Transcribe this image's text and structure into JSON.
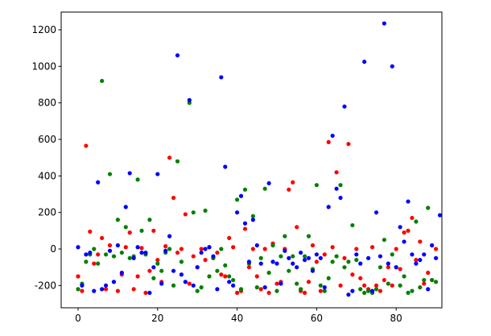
{
  "chart_data": {
    "type": "scatter",
    "xlim": [
      -4.25,
      91.5
    ],
    "ylim": [
      -322,
      1297
    ],
    "xticks": [
      0,
      20,
      40,
      60,
      80
    ],
    "yticks": [
      -200,
      0,
      200,
      400,
      600,
      800,
      1000,
      1200
    ],
    "series": [
      {
        "color": "#ff0000",
        "x": [
          0,
          1,
          2,
          3,
          4,
          5,
          6,
          7,
          8,
          9,
          10,
          11,
          12,
          13,
          14,
          15,
          16,
          17,
          18,
          19,
          20,
          21,
          22,
          23,
          24,
          25,
          26,
          27,
          28,
          29,
          30,
          31,
          32,
          33,
          34,
          35,
          36,
          37,
          38,
          39,
          40,
          41,
          42,
          43,
          44,
          45,
          46,
          47,
          48,
          49,
          50,
          51,
          52,
          53,
          54,
          55,
          56,
          57,
          58,
          59,
          60,
          61,
          62,
          63,
          64,
          65,
          66,
          67,
          68,
          69,
          70,
          71,
          72,
          73,
          74,
          75,
          76,
          77,
          78,
          79,
          80,
          81,
          82,
          83,
          84,
          85,
          86,
          87,
          88,
          89,
          90
        ],
        "values": [
          -150,
          -230,
          565,
          95,
          -80,
          -30,
          60,
          -220,
          20,
          -180,
          -230,
          -140,
          10,
          90,
          -220,
          -150,
          5,
          -240,
          -120,
          100,
          -60,
          -180,
          15,
          500,
          280,
          -20,
          0,
          190,
          -190,
          -40,
          -100,
          0,
          -60,
          10,
          -50,
          -20,
          -140,
          -150,
          60,
          10,
          -240,
          -230,
          110,
          -100,
          0,
          -150,
          -220,
          0,
          -240,
          30,
          -190,
          -180,
          0,
          325,
          365,
          120,
          -230,
          -240,
          -180,
          20,
          -70,
          -230,
          -30,
          585,
          10,
          420,
          -200,
          -50,
          575,
          -140,
          0,
          -160,
          -200,
          -220,
          10,
          -200,
          -230,
          -170,
          -100,
          -200,
          0,
          -110,
          90,
          100,
          170,
          -60,
          40,
          -190,
          -130,
          -170,
          0
        ]
      },
      {
        "color": "#008000",
        "x": [
          0,
          1,
          2,
          3,
          4,
          5,
          6,
          7,
          8,
          9,
          10,
          11,
          12,
          13,
          14,
          15,
          16,
          17,
          18,
          19,
          20,
          21,
          22,
          23,
          24,
          25,
          26,
          27,
          28,
          29,
          30,
          31,
          32,
          33,
          34,
          35,
          36,
          37,
          38,
          39,
          40,
          41,
          42,
          43,
          44,
          45,
          46,
          47,
          48,
          49,
          50,
          51,
          52,
          53,
          54,
          55,
          56,
          57,
          58,
          59,
          60,
          61,
          62,
          63,
          64,
          65,
          66,
          67,
          68,
          69,
          70,
          71,
          72,
          73,
          74,
          75,
          76,
          77,
          78,
          79,
          80,
          81,
          82,
          83,
          84,
          85,
          86,
          87,
          88,
          89,
          90
        ],
        "values": [
          -220,
          -190,
          -70,
          -30,
          0,
          -80,
          920,
          -30,
          410,
          -40,
          160,
          -20,
          120,
          -50,
          -40,
          380,
          100,
          -30,
          160,
          -160,
          -80,
          -120,
          -20,
          0,
          -200,
          480,
          -70,
          -180,
          800,
          200,
          -230,
          -210,
          210,
          -150,
          -50,
          -120,
          0,
          -90,
          -150,
          -170,
          270,
          -220,
          325,
          -80,
          180,
          -210,
          -50,
          330,
          -130,
          20,
          -230,
          -40,
          70,
          -120,
          -40,
          -190,
          -220,
          -40,
          70,
          -110,
          350,
          -200,
          -230,
          -160,
          -70,
          -40,
          350,
          -100,
          -70,
          130,
          -60,
          -220,
          -240,
          -230,
          -240,
          -220,
          -100,
          50,
          -190,
          -30,
          -100,
          -200,
          -150,
          -240,
          -230,
          150,
          -210,
          -170,
          225,
          -170,
          -180
        ]
      },
      {
        "color": "#0000ff",
        "x": [
          0,
          1,
          2,
          3,
          4,
          5,
          6,
          7,
          8,
          9,
          10,
          11,
          12,
          13,
          14,
          15,
          16,
          17,
          18,
          19,
          20,
          21,
          22,
          23,
          24,
          25,
          26,
          27,
          28,
          29,
          30,
          31,
          32,
          33,
          34,
          35,
          36,
          37,
          38,
          39,
          40,
          41,
          42,
          43,
          44,
          45,
          46,
          47,
          48,
          49,
          50,
          51,
          52,
          53,
          54,
          55,
          56,
          57,
          58,
          59,
          60,
          61,
          62,
          63,
          64,
          65,
          66,
          67,
          68,
          69,
          70,
          71,
          72,
          73,
          74,
          75,
          76,
          77,
          78,
          79,
          80,
          81,
          82,
          83,
          84,
          85,
          86,
          87,
          88,
          89,
          90,
          91
        ],
        "values": [
          10,
          -200,
          -30,
          -20,
          -230,
          365,
          -220,
          -200,
          -10,
          -180,
          20,
          -130,
          230,
          415,
          -50,
          10,
          -20,
          -20,
          -240,
          -100,
          410,
          -190,
          -10,
          70,
          -120,
          1060,
          -140,
          -180,
          815,
          -200,
          -100,
          -20,
          0,
          10,
          -40,
          -220,
          940,
          450,
          -180,
          -200,
          200,
          290,
          140,
          -70,
          160,
          20,
          -80,
          -210,
          360,
          -70,
          -80,
          -190,
          -10,
          -50,
          -80,
          -100,
          -20,
          -60,
          -50,
          -120,
          -30,
          -50,
          -210,
          230,
          620,
          330,
          280,
          780,
          -250,
          -230,
          -30,
          -80,
          1025,
          -50,
          -230,
          200,
          -40,
          1235,
          -80,
          1000,
          -100,
          120,
          40,
          260,
          -30,
          -80,
          -60,
          -30,
          -220,
          20,
          -50,
          185
        ]
      }
    ]
  }
}
